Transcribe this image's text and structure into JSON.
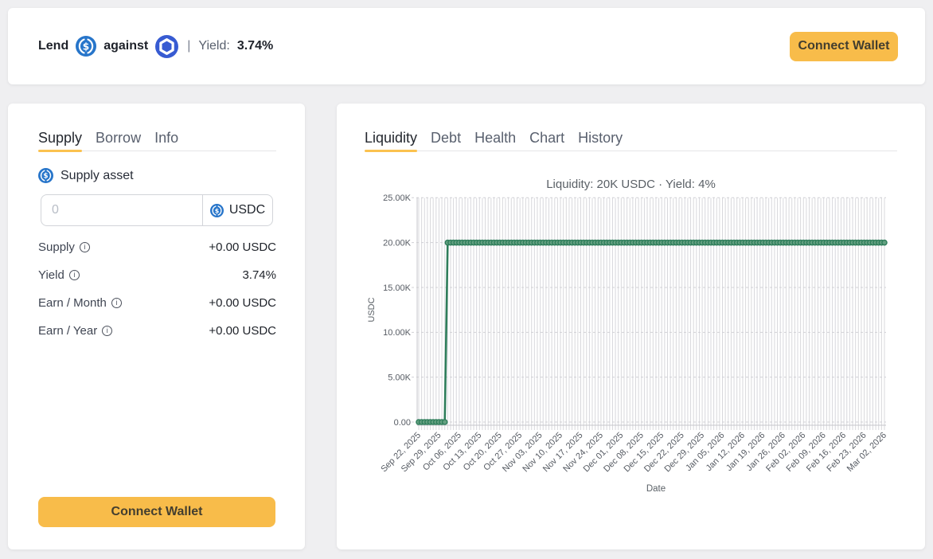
{
  "header": {
    "lend": "Lend",
    "against": "against",
    "separator": "|",
    "yield_label": "Yield:",
    "yield_value": "3.74%",
    "connect_wallet": "Connect Wallet",
    "supply_token_icon": "usdc-icon",
    "collateral_token_icon": "chainlink-icon"
  },
  "colors": {
    "accent": "#F8BC4A",
    "tab_underline": "#FBC24F",
    "usdc_blue": "#2775CA",
    "chainlink_blue": "#375BD2",
    "chart_line_green": "#2E7D5A"
  },
  "supply_panel": {
    "tabs": [
      "Supply",
      "Borrow",
      "Info"
    ],
    "active_tab": "Supply",
    "supply_asset_label": "Supply asset",
    "amount_placeholder": "0",
    "token": "USDC",
    "rows": [
      {
        "label": "Supply",
        "value": "+0.00 USDC"
      },
      {
        "label": "Yield",
        "value": "3.74%"
      },
      {
        "label": "Earn / Month",
        "value": "+0.00 USDC"
      },
      {
        "label": "Earn / Year",
        "value": "+0.00 USDC"
      }
    ],
    "connect_wallet": "Connect Wallet"
  },
  "chart_panel": {
    "tabs": [
      "Liquidity",
      "Debt",
      "Health",
      "Chart",
      "History"
    ],
    "active_tab": "Liquidity"
  },
  "chart_data": {
    "type": "line",
    "title": "Liquidity: 20K USDC · Yield: 4%",
    "xlabel": "Date",
    "ylabel": "USDC",
    "ylim": [
      0,
      25000
    ],
    "yticks": [
      0,
      5000,
      10000,
      15000,
      20000,
      25000
    ],
    "ytick_labels": [
      "0.00",
      "5.00K",
      "10.00K",
      "15.00K",
      "20.00K",
      "25.00K"
    ],
    "x_week_labels": [
      "Sep 22, 2025",
      "Sep 29, 2025",
      "Oct 06, 2025",
      "Oct 13, 2025",
      "Oct 20, 2025",
      "Oct 27, 2025",
      "Nov 03, 2025",
      "Nov 10, 2025",
      "Nov 17, 2025",
      "Nov 24, 2025",
      "Dec 01, 2025",
      "Dec 08, 2025",
      "Dec 15, 2025",
      "Dec 22, 2025",
      "Dec 29, 2025",
      "Jan 05, 2026",
      "Jan 12, 2026",
      "Jan 19, 2026",
      "Jan 26, 2026",
      "Feb 02, 2026",
      "Feb 09, 2026",
      "Feb 16, 2026",
      "Feb 23, 2026",
      "Mar 02, 2026"
    ],
    "points_per_week": 7,
    "num_points": 162,
    "series": [
      {
        "name": "Liquidity",
        "step_index": 10,
        "value_before_step": 0,
        "value_after_step": 20000,
        "description": "Daily liquidity: 0 USDC from Sep 22 2025 through Oct 01 2025, then 20000 USDC from Oct 02 2025 through Mar 02 2026"
      }
    ],
    "line_color": "#2E7D5A",
    "marker_fill": "#64A081",
    "grid": true,
    "legend": false
  }
}
